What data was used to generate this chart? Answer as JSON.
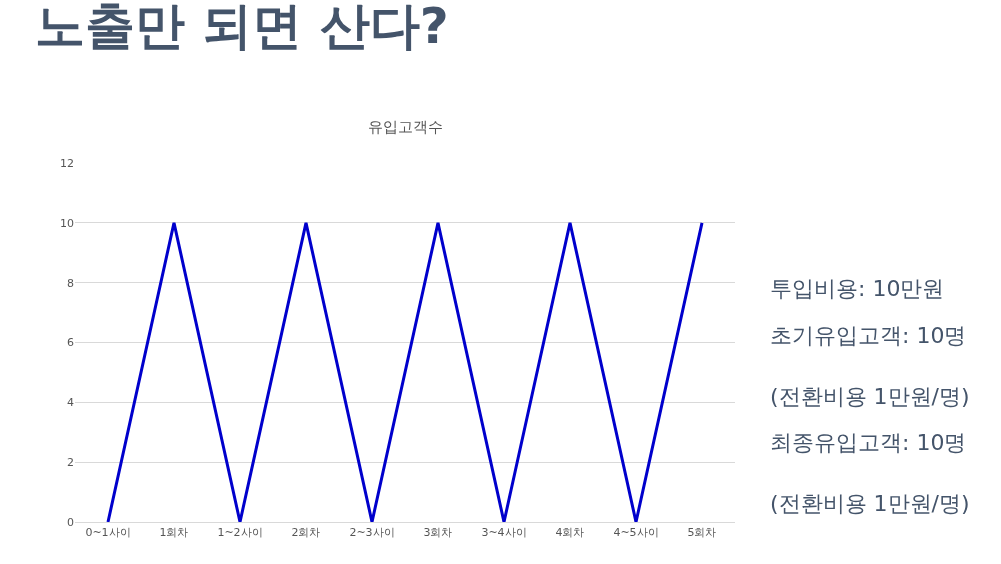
{
  "chart_data": {
    "type": "line",
    "title": "노출만 되면 산다?",
    "subtitle": "유입고객수",
    "categories": [
      "0~1사이",
      "1회차",
      "1~2사이",
      "2회차",
      "2~3사이",
      "3회차",
      "3~4사이",
      "4회차",
      "4~5사이",
      "5회차"
    ],
    "values": [
      0,
      10,
      0,
      10,
      0,
      10,
      0,
      10,
      0,
      10
    ],
    "color": "#0000cc",
    "ylim": [
      0,
      12
    ],
    "yticks": [
      0,
      2,
      4,
      6,
      8,
      10,
      12
    ],
    "grid": "y",
    "marker": "none",
    "line_style": "solid",
    "annotations": [
      "투입비용: 10만원",
      "초기유입고객: 10명",
      "(전환비용 1만원/명)",
      "최종유입고객: 10명",
      "(전환비용 1만원/명)"
    ]
  }
}
